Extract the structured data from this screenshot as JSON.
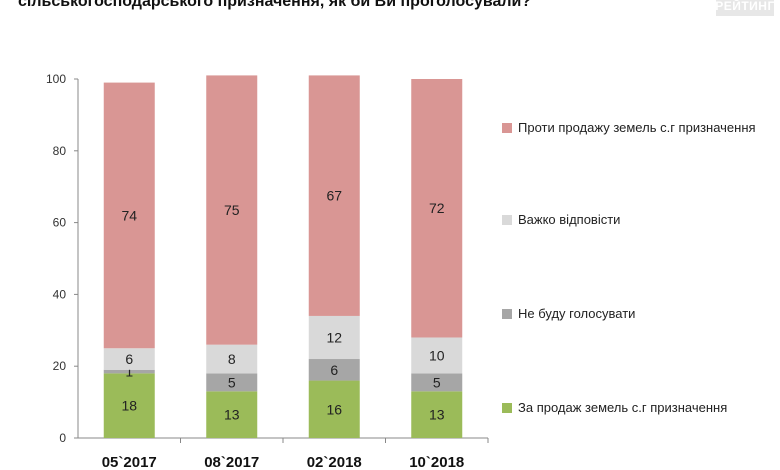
{
  "header": {
    "title": "сільськогосподарського призначення, як би Ви проголосували?",
    "brand": "РЕЙТИНГ"
  },
  "colors": {
    "against": "#d99694",
    "hard": "#d9d9d9",
    "not_vote": "#a6a6a6",
    "for": "#9bbb59",
    "grid": "#d9d9d9",
    "axis": "#888888"
  },
  "chart_data": {
    "type": "bar",
    "stacked": true,
    "categories": [
      "05`2017",
      "08`2017",
      "02`2018",
      "10`2018"
    ],
    "series": [
      {
        "name": "За продаж земель с.г призначення",
        "key": "for",
        "values": [
          18,
          13,
          16,
          13
        ]
      },
      {
        "name": "Не буду голосувати",
        "key": "not_vote",
        "values": [
          1,
          5,
          6,
          5
        ]
      },
      {
        "name": "Важко відповісти",
        "key": "hard",
        "values": [
          6,
          8,
          12,
          10
        ]
      },
      {
        "name": "Проти продажу земель с.г призначення",
        "key": "against",
        "values": [
          74,
          75,
          67,
          72
        ]
      }
    ],
    "yticks": [
      "0",
      "20",
      "40",
      "60",
      "80",
      "100"
    ],
    "ylim": [
      0,
      100
    ],
    "grid": false,
    "legend_position": "right"
  }
}
